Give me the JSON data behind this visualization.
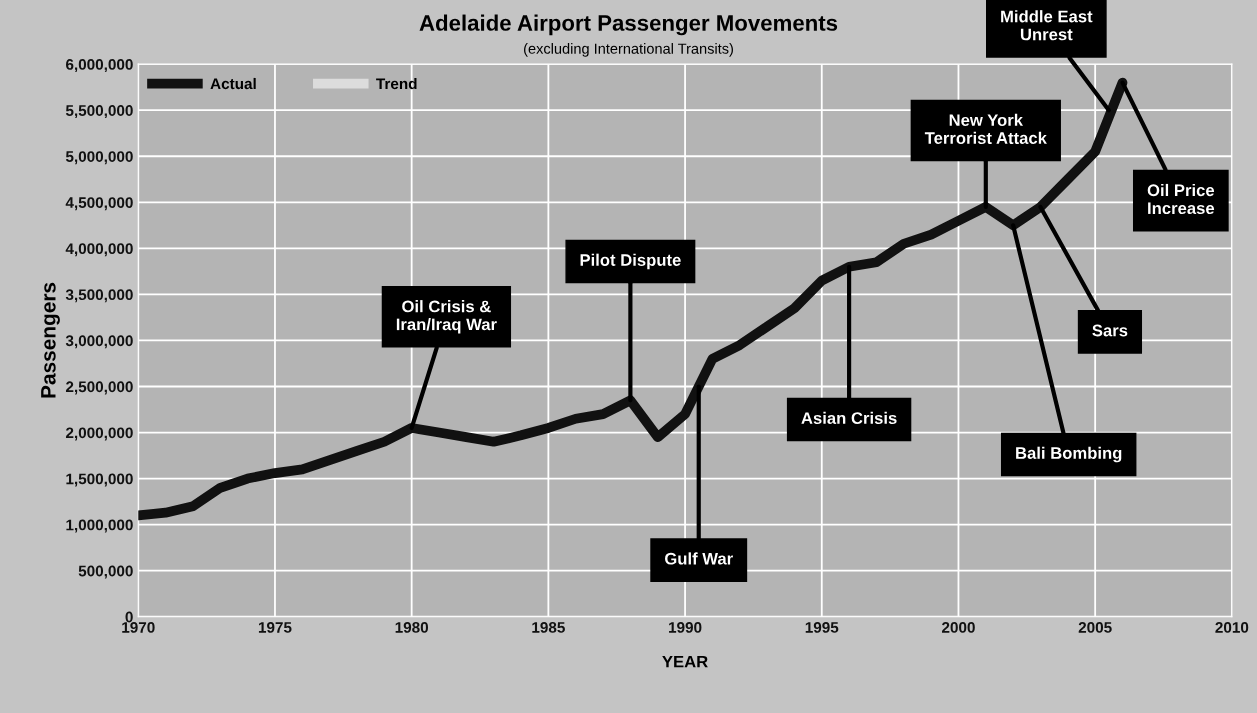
{
  "chart_data": {
    "type": "line",
    "title": "Adelaide Airport Passenger Movements",
    "subtitle": "(excluding International Transits)",
    "xlabel": "YEAR",
    "ylabel": "Passengers",
    "x": [
      1970,
      1971,
      1972,
      1973,
      1974,
      1975,
      1976,
      1977,
      1978,
      1979,
      1980,
      1981,
      1982,
      1983,
      1984,
      1985,
      1986,
      1987,
      1988,
      1989,
      1990,
      1991,
      1992,
      1993,
      1994,
      1995,
      1996,
      1997,
      1998,
      1999,
      2000,
      2001,
      2002,
      2003,
      2004,
      2005,
      2006
    ],
    "series": [
      {
        "name": "Actual",
        "color": "#111111",
        "values": [
          1100000,
          1130000,
          1200000,
          1400000,
          1500000,
          1560000,
          1600000,
          1700000,
          1800000,
          1900000,
          2050000,
          2000000,
          1950000,
          1900000,
          1970000,
          2050000,
          2150000,
          2200000,
          2350000,
          1950000,
          2200000,
          2800000,
          2950000,
          3150000,
          3350000,
          3650000,
          3800000,
          3850000,
          4050000,
          4150000,
          4300000,
          4450000,
          4250000,
          4450000,
          4750000,
          5050000,
          5800000
        ]
      },
      {
        "name": "Trend",
        "color": "#dcdcdc",
        "values": [
          null,
          null,
          null,
          null,
          null,
          null,
          null,
          null,
          null,
          null,
          null,
          null,
          null,
          null,
          null,
          null,
          null,
          null,
          null,
          null,
          null,
          null,
          null,
          null,
          null,
          null,
          null,
          null,
          null,
          null,
          null,
          null,
          null,
          null,
          null,
          null,
          null
        ]
      }
    ],
    "xlim": [
      1970,
      2010
    ],
    "xticks": [
      1970,
      1975,
      1980,
      1985,
      1990,
      1995,
      2000,
      2005,
      2010
    ],
    "ylim": [
      0,
      6000000
    ],
    "yticks": [
      {
        "value": 0,
        "label": "0"
      },
      {
        "value": 500000,
        "label": "500,000"
      },
      {
        "value": 1000000,
        "label": "1,000,000"
      },
      {
        "value": 1500000,
        "label": "1,500,000"
      },
      {
        "value": 2000000,
        "label": "2,000,000"
      },
      {
        "value": 2500000,
        "label": "2,500,000"
      },
      {
        "value": 3000000,
        "label": "3,000,000"
      },
      {
        "value": 3500000,
        "label": "3,500,000"
      },
      {
        "value": 4000000,
        "label": "4,000,000"
      },
      {
        "value": 4500000,
        "label": "4,500,000"
      },
      {
        "value": 5000000,
        "label": "5,000,000"
      },
      {
        "value": 5500000,
        "label": "5,500,000"
      },
      {
        "value": 6000000,
        "label": "6,000,000"
      }
    ],
    "grid": true,
    "legend": "top left",
    "marker": "none",
    "line_style": "solid",
    "annotations": [
      {
        "text": "Oil Crisis &\nIran/Iraq War",
        "x": 1980,
        "y": 2050000
      },
      {
        "text": "Pilot Dispute",
        "x": 1988,
        "y": 2350000
      },
      {
        "text": "Gulf War",
        "x": 1990.5,
        "y": 2500000
      },
      {
        "text": "Asian Crisis",
        "x": 1996,
        "y": 3800000
      },
      {
        "text": "New York\nTerrorist Attack",
        "x": 2001,
        "y": 4450000
      },
      {
        "text": "Bali Bombing",
        "x": 2002,
        "y": 4250000
      },
      {
        "text": "Sars",
        "x": 2003,
        "y": 4450000
      },
      {
        "text": "Middle East\nUnrest",
        "x": 2005.5,
        "y": 5500000
      },
      {
        "text": "Oil Price\nIncrease",
        "x": 2006,
        "y": 5800000
      }
    ]
  }
}
